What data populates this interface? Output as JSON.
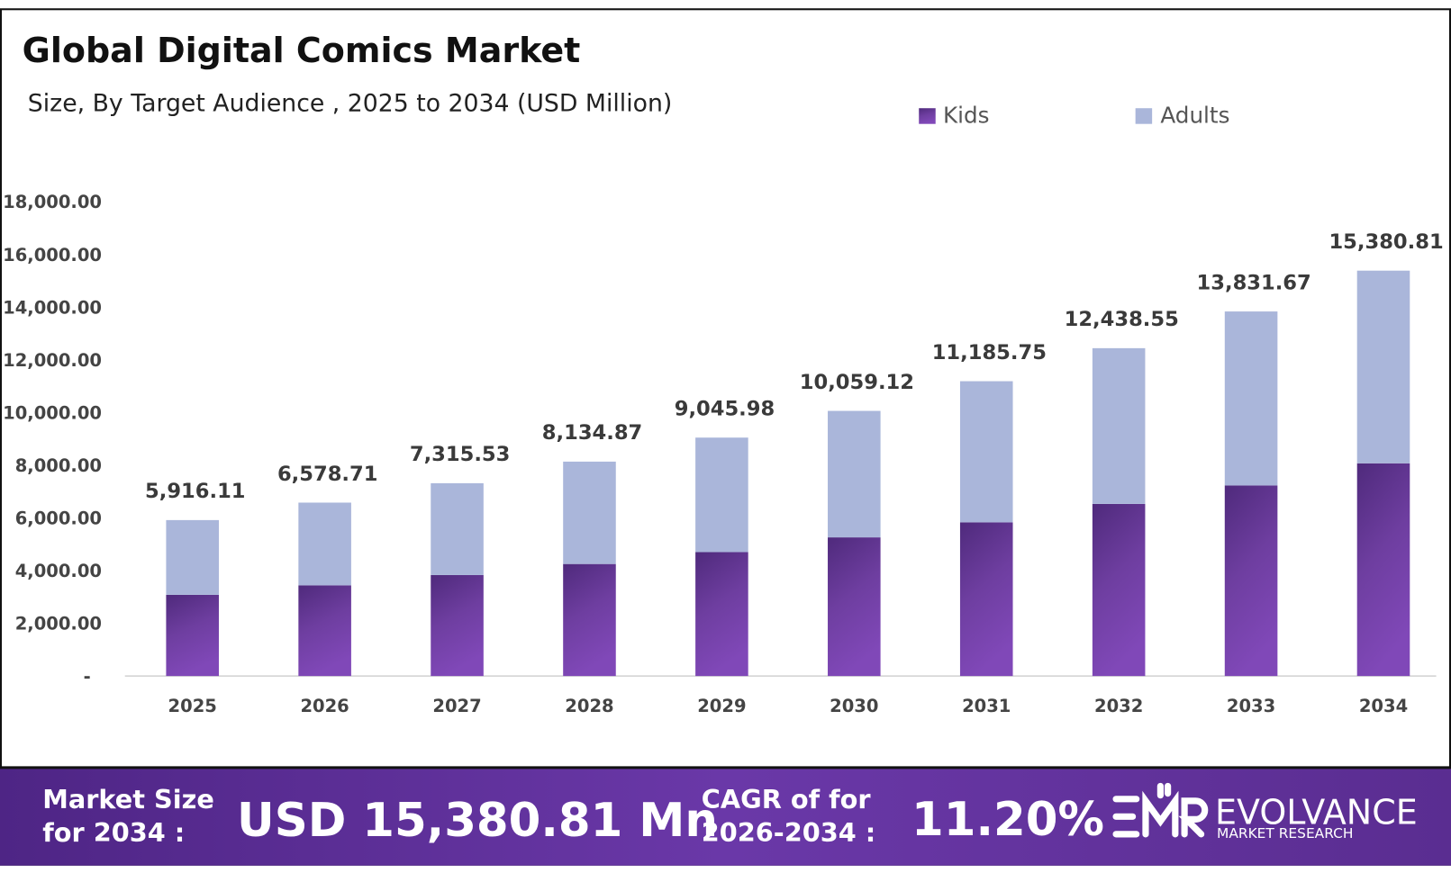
{
  "chart_data": {
    "type": "bar",
    "stacked": true,
    "title": "Global Digital Comics Market",
    "subtitle": "Size, By Target Audience , 2025 to 2034 (USD Million)",
    "categories": [
      "2025",
      "2026",
      "2027",
      "2028",
      "2029",
      "2030",
      "2031",
      "2032",
      "2033",
      "2034"
    ],
    "series": [
      {
        "name": "Kids",
        "color": "#6e3aa0",
        "values": [
          3080,
          3440,
          3830,
          4250,
          4700,
          5260,
          5830,
          6530,
          7230,
          8070
        ]
      },
      {
        "name": "Adults",
        "color": "#aab6da",
        "values": [
          2836.11,
          3138.71,
          3485.53,
          3884.87,
          4345.98,
          4799.12,
          5355.75,
          5908.55,
          6601.67,
          7310.81
        ]
      }
    ],
    "totals": [
      5916.11,
      6578.71,
      7315.53,
      8134.87,
      9045.98,
      10059.12,
      11185.75,
      12438.55,
      13831.67,
      15380.81
    ],
    "total_labels": [
      "5,916.11",
      "6,578.71",
      "7,315.53",
      "8,134.87",
      "9,045.98",
      "10,059.12",
      "11,185.75",
      "12,438.55",
      "13,831.67",
      "15,380.81"
    ],
    "ylim": [
      0,
      18000
    ],
    "yticks": [
      0,
      2000,
      4000,
      6000,
      8000,
      10000,
      12000,
      14000,
      16000,
      18000
    ],
    "ytick_labels": [
      "-",
      "2,000.00",
      "4,000.00",
      "6,000.00",
      "8,000.00",
      "10,000.00",
      "12,000.00",
      "14,000.00",
      "16,000.00",
      "18,000.00"
    ],
    "xlabel": "",
    "ylabel": "",
    "grid": false,
    "legend_position": "top-right"
  },
  "footer": {
    "market_size_label_1": "Market Size",
    "market_size_label_2": "for 2034 :",
    "market_size_value": "USD 15,380.81 Mn",
    "cagr_label_1": "CAGR of for",
    "cagr_label_2": "2026-2034 :",
    "cagr_value": "11.20%",
    "logo_text": "EVOLVANCE",
    "logo_subtext": "MARKET RESEARCH",
    "background_color": "#5a2d91"
  }
}
